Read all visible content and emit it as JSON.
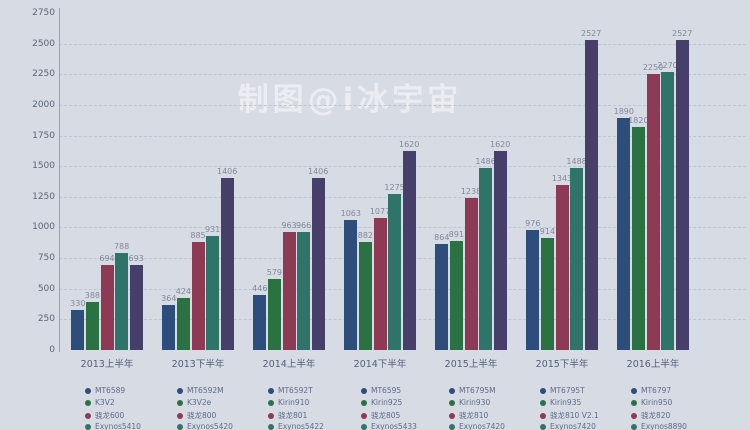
{
  "watermark": "制图@i冰宇宙",
  "chart_data": {
    "type": "bar",
    "title": "",
    "xlabel": "",
    "ylabel": "",
    "categories": [
      "2013上半年",
      "2013下半年",
      "2014上半年",
      "2014下半年",
      "2015上半年",
      "2015下半年",
      "2016上半年"
    ],
    "series": [
      {
        "key": "blue",
        "color": "#2d4d7b",
        "values": [
          330,
          364,
          446,
          1063,
          864,
          976,
          1890
        ]
      },
      {
        "key": "green",
        "color": "#2b7243",
        "values": [
          388,
          424,
          579,
          882,
          891,
          914,
          1820
        ]
      },
      {
        "key": "crimson",
        "color": "#8f3a55",
        "values": [
          694,
          885,
          963,
          1077,
          1238,
          1343,
          2250
        ]
      },
      {
        "key": "teal",
        "color": "#2f7468",
        "values": [
          788,
          931,
          966,
          1275,
          1486,
          1488,
          2270
        ]
      },
      {
        "key": "purple",
        "color": "#453f6a",
        "values": [
          693,
          1406,
          1406,
          1620,
          1620,
          2527,
          2527
        ]
      }
    ],
    "ylim": [
      0,
      2750
    ],
    "grid": "dashed-horizontal",
    "legend_position": "bottom"
  },
  "axis": {
    "yticks": [
      0,
      250,
      500,
      750,
      1000,
      1250,
      1500,
      1750,
      2000,
      2250,
      2500,
      2750
    ]
  },
  "legend": {
    "marker_colors": [
      "#2d4d7b",
      "#2b7243",
      "#8f3a55",
      "#2f7468"
    ],
    "columns": [
      [
        "MT6589",
        "K3V2",
        "骁龙600",
        "Exynos5410"
      ],
      [
        "MT6592M",
        "K3V2e",
        "骁龙800",
        "Exynos5420"
      ],
      [
        "MT6592T",
        "Kirin910",
        "骁龙801",
        "Exynos5422"
      ],
      [
        "MT6595",
        "Kirin925",
        "骁龙805",
        "Exynos5433"
      ],
      [
        "MT6795M",
        "Kirin930",
        "骁龙810",
        "Exynos7420"
      ],
      [
        "MT6795T",
        "Kirin935",
        "骁龙810 V2.1",
        "Exynos7420"
      ],
      [
        "MT6797",
        "Kirin950",
        "骁龙820",
        "Exynos8890"
      ]
    ]
  },
  "colors": {
    "background": "#d6dbe4",
    "gridline": "#bfc6d3",
    "axis_line": "#9aa2b2",
    "tick_text": "#5c6576",
    "value_text": "#82889a",
    "category_text": "#52607e",
    "legend_text": "#5d6c89"
  }
}
